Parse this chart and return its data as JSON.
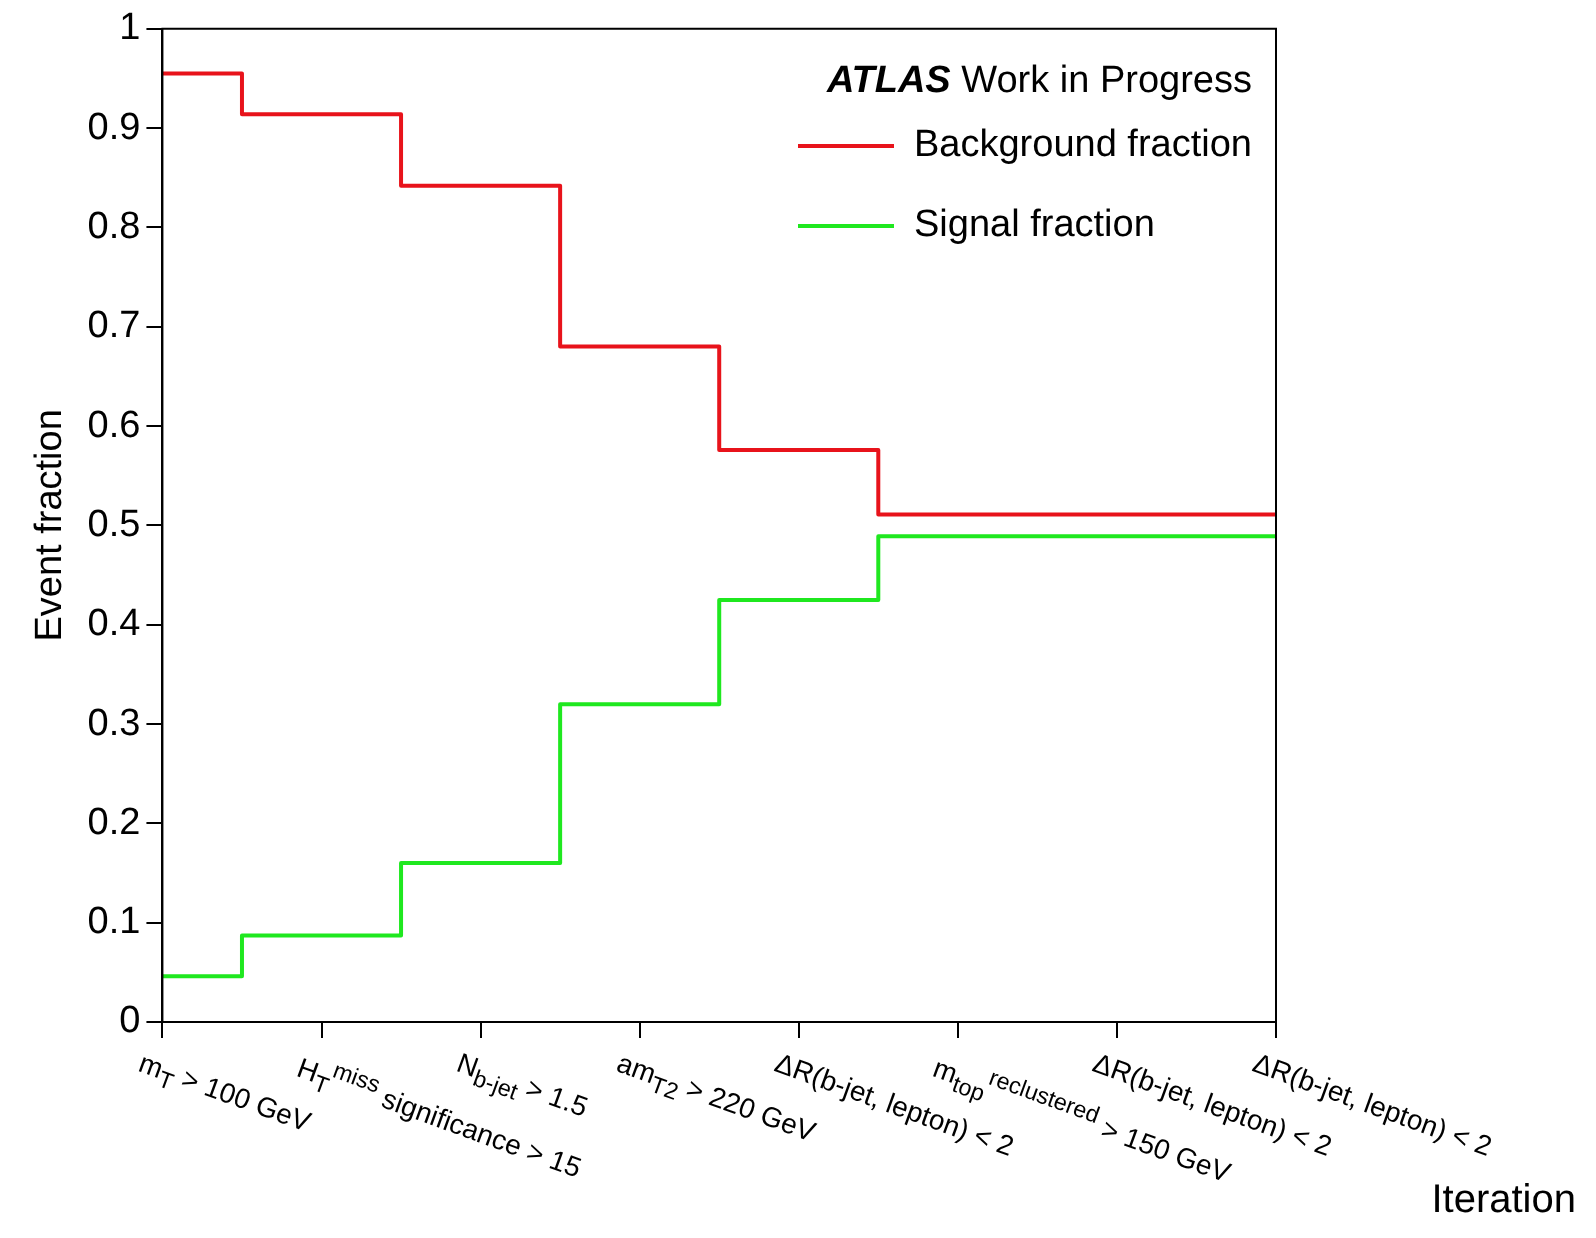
{
  "chart_data": {
    "type": "step",
    "ylabel": "Event fraction",
    "xlabel": "Iteration",
    "categories": [
      "m$_{T}$ > 100 GeV",
      "H$_{T}$$^{miss}$ significance > 15",
      "N$_{b-jet}$ > 1.5",
      "am$_{T2}$ > 220 GeV",
      "ΔR(b-jet, lepton) < 2",
      "m$_{top}$$^{reclustered}$ > 150 GeV",
      "ΔR(b-jet, lepton) < 2",
      "ΔR(b-jet, lepton) < 2"
    ],
    "series": [
      {
        "name": "Background fraction",
        "color": "#e8131b",
        "values": [
          0.955,
          0.914,
          0.842,
          0.68,
          0.576,
          0.511,
          0.511,
          0.511
        ]
      },
      {
        "name": "Signal fraction",
        "color": "#1fe81f",
        "values": [
          0.046,
          0.087,
          0.16,
          0.32,
          0.425,
          0.489,
          0.489,
          0.489
        ]
      }
    ],
    "ylim": [
      0,
      1
    ],
    "yticks": [
      0,
      0.1,
      0.2,
      0.3,
      0.4,
      0.5,
      0.6,
      0.7,
      0.8,
      0.9,
      1
    ],
    "legend": "top right",
    "grid": false,
    "annotations": [
      "ATLAS Work in Progress"
    ]
  }
}
